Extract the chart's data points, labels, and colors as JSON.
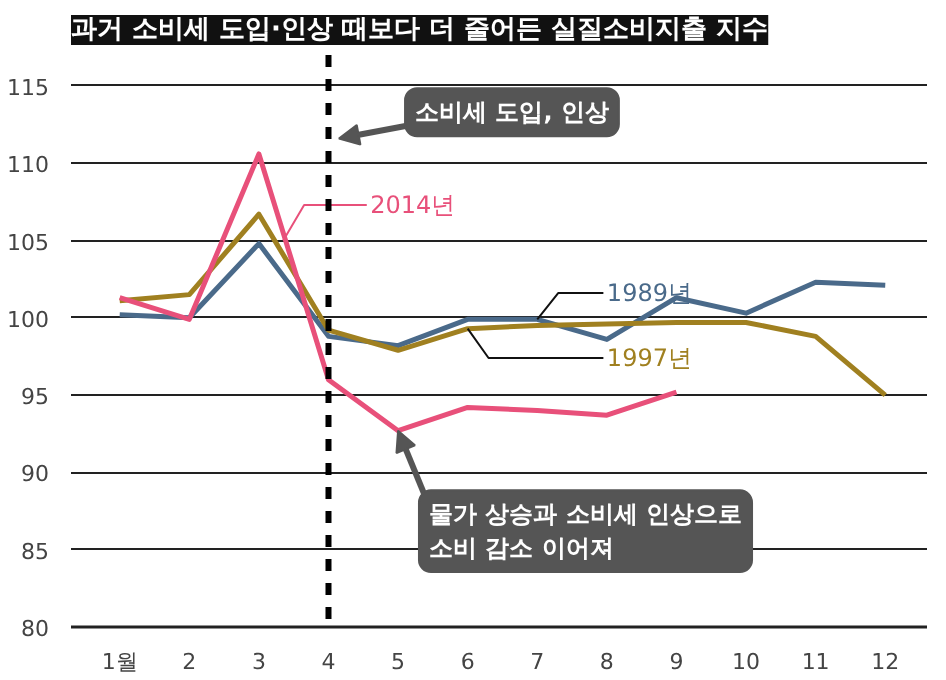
{
  "chart_data": {
    "type": "line",
    "title": "과거 소비세 도입·인상 때보다 더 줄어든 실질소비지출 지수",
    "categories": [
      "1월",
      "2",
      "3",
      "4",
      "5",
      "6",
      "7",
      "8",
      "9",
      "10",
      "11",
      "12"
    ],
    "series": [
      {
        "name": "1989년",
        "color": "#4a6a8a",
        "values": [
          100.2,
          100.0,
          104.8,
          98.8,
          98.2,
          99.9,
          99.9,
          98.6,
          101.3,
          100.3,
          102.3,
          102.1
        ]
      },
      {
        "name": "1997년",
        "color": "#a08020",
        "values": [
          101.1,
          101.5,
          106.7,
          99.2,
          97.9,
          99.3,
          99.5,
          99.6,
          99.7,
          99.7,
          98.8,
          95.0
        ]
      },
      {
        "name": "2014년",
        "color": "#e8507a",
        "values": [
          101.3,
          99.9,
          110.6,
          96.0,
          92.7,
          94.2,
          94.0,
          93.7,
          95.2,
          null,
          null,
          null
        ]
      }
    ],
    "ylim": [
      80,
      117
    ],
    "yticks": [
      80,
      85,
      90,
      95,
      100,
      105,
      110,
      115
    ],
    "grid": "y",
    "legend": false,
    "marker": "none",
    "line_style": "solid",
    "ref_lines": [
      {
        "axis": "x",
        "value": "4",
        "line_style": "dashed",
        "color": "#000000"
      }
    ],
    "annotations": [
      "소비세 도입, 인상",
      {
        "text": "물가 상승과 소비세 인상으로\n소비 감소 이어져",
        "x": "5",
        "y": 92.7
      }
    ]
  }
}
